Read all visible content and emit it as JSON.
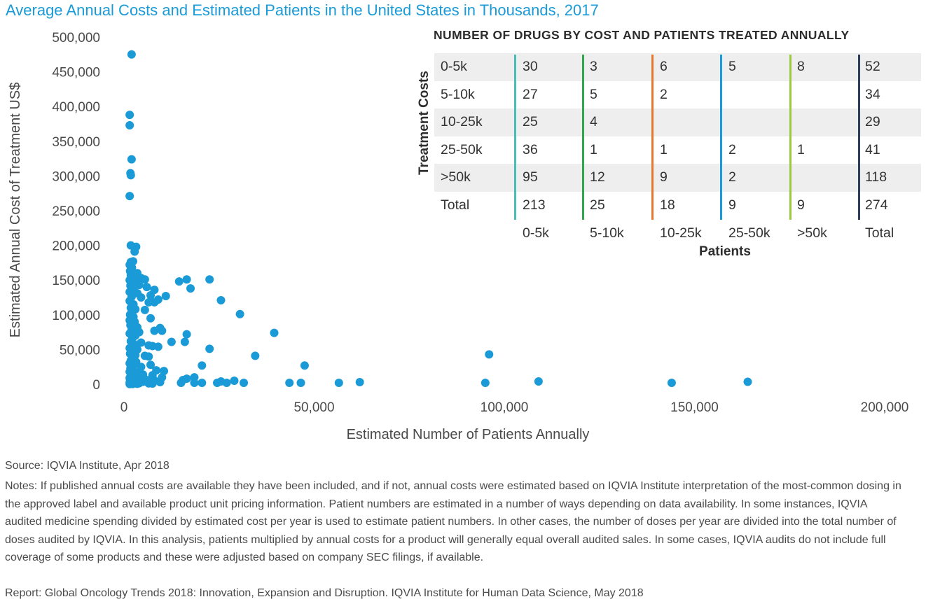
{
  "title": "Average Annual Costs and Estimated Patients in the United States in Thousands, 2017",
  "chart_data": [
    {
      "type": "scatter",
      "xlabel": "Estimated Number of Patients Annually",
      "ylabel": "Estimated Annual Cost of Treatment US$",
      "xlim": [
        0,
        200000
      ],
      "ylim": [
        0,
        500000
      ],
      "x_ticks": [
        "0",
        "50,000",
        "100,000",
        "150,000",
        "200,000"
      ],
      "y_ticks": [
        "0",
        "50,000",
        "100,000",
        "150,000",
        "200,000",
        "250,000",
        "300,000",
        "350,000",
        "400,000",
        "450,000",
        "500,000"
      ],
      "marker_color": "#1a9bd7",
      "grid": false,
      "points": [
        [
          2000,
          475000
        ],
        [
          1500,
          388000
        ],
        [
          1500,
          373000
        ],
        [
          2000,
          324000
        ],
        [
          1700,
          304000
        ],
        [
          1800,
          301000
        ],
        [
          1500,
          271000
        ],
        [
          1800,
          200000
        ],
        [
          3200,
          198000
        ],
        [
          2800,
          191000
        ],
        [
          1800,
          176000
        ],
        [
          2400,
          177000
        ],
        [
          1500,
          172000
        ],
        [
          2100,
          168000
        ],
        [
          1600,
          163000
        ],
        [
          3500,
          160000
        ],
        [
          1800,
          157000
        ],
        [
          2700,
          155000
        ],
        [
          4500,
          153000
        ],
        [
          5500,
          151000
        ],
        [
          1500,
          150000
        ],
        [
          2200,
          147000
        ],
        [
          3000,
          146000
        ],
        [
          4000,
          143000
        ],
        [
          1700,
          142000
        ],
        [
          6000,
          140000
        ],
        [
          8000,
          136000
        ],
        [
          2500,
          137000
        ],
        [
          1500,
          133000
        ],
        [
          3500,
          131000
        ],
        [
          7000,
          128000
        ],
        [
          11000,
          127000
        ],
        [
          2000,
          126000
        ],
        [
          4500,
          125000
        ],
        [
          9000,
          122000
        ],
        [
          6500,
          118000
        ],
        [
          8000,
          118000
        ],
        [
          1500,
          120000
        ],
        [
          2500,
          115000
        ],
        [
          1800,
          110000
        ],
        [
          3000,
          108000
        ],
        [
          5500,
          107000
        ],
        [
          2000,
          104000
        ],
        [
          1600,
          100000
        ],
        [
          2500,
          97000
        ],
        [
          7000,
          95000
        ],
        [
          1500,
          92000
        ],
        [
          2800,
          90000
        ],
        [
          1700,
          85000
        ],
        [
          3500,
          82000
        ],
        [
          9500,
          81000
        ],
        [
          2000,
          78000
        ],
        [
          8000,
          77000
        ],
        [
          10000,
          77000
        ],
        [
          4000,
          75000
        ],
        [
          1500,
          73000
        ],
        [
          3000,
          70000
        ],
        [
          2200,
          66000
        ],
        [
          1800,
          62000
        ],
        [
          4500,
          60000
        ],
        [
          2600,
          58000
        ],
        [
          6500,
          56000
        ],
        [
          7500,
          55000
        ],
        [
          9000,
          54000
        ],
        [
          1500,
          52000
        ],
        [
          3500,
          50000
        ],
        [
          2000,
          47000
        ],
        [
          1600,
          44000
        ],
        [
          3000,
          42000
        ],
        [
          5500,
          41000
        ],
        [
          6500,
          40000
        ],
        [
          2400,
          37000
        ],
        [
          1800,
          34000
        ],
        [
          3200,
          32000
        ],
        [
          1500,
          30000
        ],
        [
          7000,
          28000
        ],
        [
          2500,
          27000
        ],
        [
          4500,
          25000
        ],
        [
          1700,
          23000
        ],
        [
          2100,
          21000
        ],
        [
          8500,
          20000
        ],
        [
          10500,
          19000
        ],
        [
          1500,
          18000
        ],
        [
          3500,
          17000
        ],
        [
          2600,
          15000
        ],
        [
          5000,
          14000
        ],
        [
          7500,
          13000
        ],
        [
          1800,
          12000
        ],
        [
          3000,
          11000
        ],
        [
          10000,
          10000
        ],
        [
          1500,
          9000
        ],
        [
          2500,
          8000
        ],
        [
          4000,
          7000
        ],
        [
          6000,
          6000
        ],
        [
          8000,
          5500
        ],
        [
          1600,
          5000
        ],
        [
          2200,
          4500
        ],
        [
          3300,
          4000
        ],
        [
          5000,
          3500
        ],
        [
          9500,
          3000
        ],
        [
          1500,
          2500
        ],
        [
          2000,
          2000
        ],
        [
          2800,
          1800
        ],
        [
          4000,
          1500
        ],
        [
          6500,
          1200
        ],
        [
          7500,
          1000
        ],
        [
          1800,
          800
        ],
        [
          3500,
          600
        ],
        [
          2300,
          400
        ],
        [
          1500,
          200
        ],
        [
          14500,
          148000
        ],
        [
          16500,
          151000
        ],
        [
          17500,
          138000
        ],
        [
          22500,
          151000
        ],
        [
          25500,
          121000
        ],
        [
          30500,
          101000
        ],
        [
          39500,
          74000
        ],
        [
          16500,
          72000
        ],
        [
          16000,
          61000
        ],
        [
          12500,
          61000
        ],
        [
          22500,
          51000
        ],
        [
          34500,
          41000
        ],
        [
          47500,
          27000
        ],
        [
          20500,
          27000
        ],
        [
          18500,
          10000
        ],
        [
          15500,
          6000
        ],
        [
          16500,
          8000
        ],
        [
          15000,
          2000
        ],
        [
          18500,
          2000
        ],
        [
          20500,
          2000
        ],
        [
          24500,
          2000
        ],
        [
          25500,
          4000
        ],
        [
          27000,
          2000
        ],
        [
          29000,
          5000
        ],
        [
          31500,
          2000
        ],
        [
          43500,
          2000
        ],
        [
          46500,
          2000
        ],
        [
          56500,
          2000
        ],
        [
          62000,
          3000
        ],
        [
          95000,
          2000
        ],
        [
          96000,
          43000
        ],
        [
          109000,
          4000
        ],
        [
          144000,
          2000
        ],
        [
          164000,
          3500
        ]
      ]
    },
    {
      "type": "table",
      "title": "NUMBER OF DRUGS BY COST AND PATIENTS TREATED ANNUALLY",
      "row_axis_label": "Treatment Costs",
      "col_axis_label": "Patients",
      "columns": [
        "0-5k",
        "5-10k",
        "10-25k",
        "25-50k",
        ">50k",
        "Total"
      ],
      "column_colors": [
        "#4dbcb8",
        "#2ea84a",
        "#e8772e",
        "#1a9bd7",
        "#9bc93c",
        "#2c3e5a"
      ],
      "rows": [
        {
          "label": "0-5k",
          "values": [
            "30",
            "3",
            "6",
            "5",
            "8",
            "52"
          ]
        },
        {
          "label": "5-10k",
          "values": [
            "27",
            "5",
            "2",
            "",
            "",
            "34"
          ]
        },
        {
          "label": "10-25k",
          "values": [
            "25",
            "4",
            "",
            "",
            "",
            "29"
          ]
        },
        {
          "label": "25-50k",
          "values": [
            "36",
            "1",
            "1",
            "2",
            "1",
            "41"
          ]
        },
        {
          "label": ">50k",
          "values": [
            "95",
            "12",
            "9",
            "2",
            "",
            "118"
          ]
        },
        {
          "label": "Total",
          "values": [
            "213",
            "25",
            "18",
            "9",
            "9",
            "274"
          ]
        }
      ]
    }
  ],
  "footer": {
    "source": "Source: IQVIA Institute, Apr 2018",
    "notes": "Notes: If published annual costs are available they have been included, and if not, annual costs were estimated based on IQVIA Institute interpretation of the most-common dosing in the approved label and available product unit pricing information. Patient numbers are estimated in a number of ways depending on data availability. In some instances, IQVIA audited medicine spending divided by estimated cost per year is used to estimate patient numbers. In other cases, the number of doses per year are divided into the total number of doses audited by IQVIA. In this analysis, patients multiplied by annual costs for a product will generally equal overall audited sales. In some cases, IQVIA audits do not include full coverage of some products and these were adjusted based on company SEC filings, if available.",
    "report": "Report: Global Oncology Trends 2018: Innovation, Expansion and Disruption. IQVIA Institute for Human Data Science, May 2018"
  }
}
